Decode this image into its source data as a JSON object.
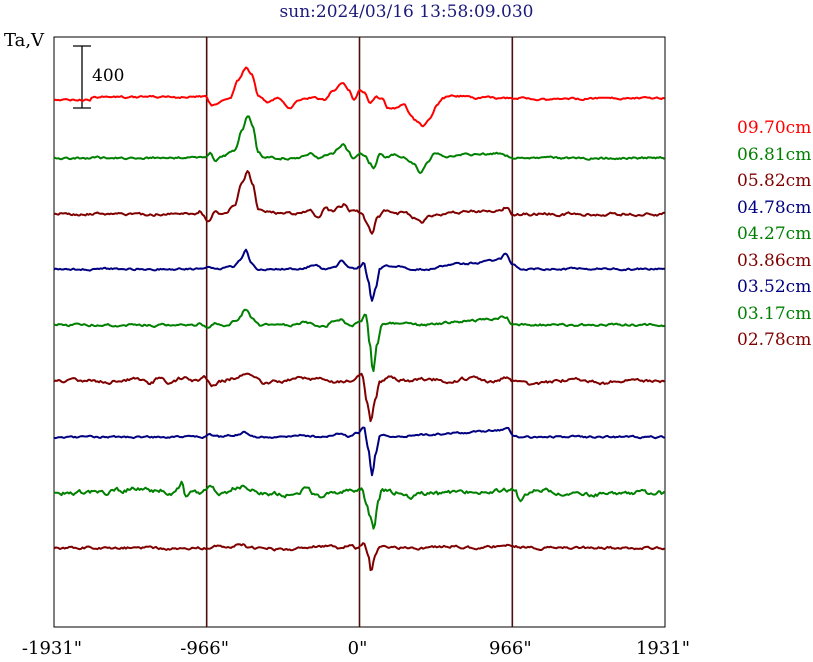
{
  "chart_data": {
    "type": "line",
    "title": "sun:2024/03/16 13:58:09.030",
    "ylabel": "Ta,V",
    "scale_bar_label": "400",
    "scale_bar_value": 400,
    "xlim": [
      -1931,
      1931
    ],
    "xticks": [
      -1931,
      -966,
      0,
      966,
      1931
    ],
    "xtick_labels": [
      "-1931\"",
      "-966\"",
      "0\"",
      "966\"",
      "1931\""
    ],
    "vertical_gridlines": [
      -966,
      0,
      966
    ],
    "series": [
      {
        "name": "09.70cm",
        "color": "#ff0000",
        "shape": "w970"
      },
      {
        "name": "06.81cm",
        "color": "#008000",
        "shape": "w681"
      },
      {
        "name": "05.82cm",
        "color": "#800000",
        "shape": "w582"
      },
      {
        "name": "04.78cm",
        "color": "#000080",
        "shape": "w478"
      },
      {
        "name": "04.27cm",
        "color": "#008000",
        "shape": "w427"
      },
      {
        "name": "03.86cm",
        "color": "#800000",
        "shape": "w386"
      },
      {
        "name": "03.52cm",
        "color": "#000080",
        "shape": "w352"
      },
      {
        "name": "03.17cm",
        "color": "#008000",
        "shape": "w317"
      },
      {
        "name": "02.78cm",
        "color": "#800000",
        "shape": "w278"
      }
    ]
  }
}
